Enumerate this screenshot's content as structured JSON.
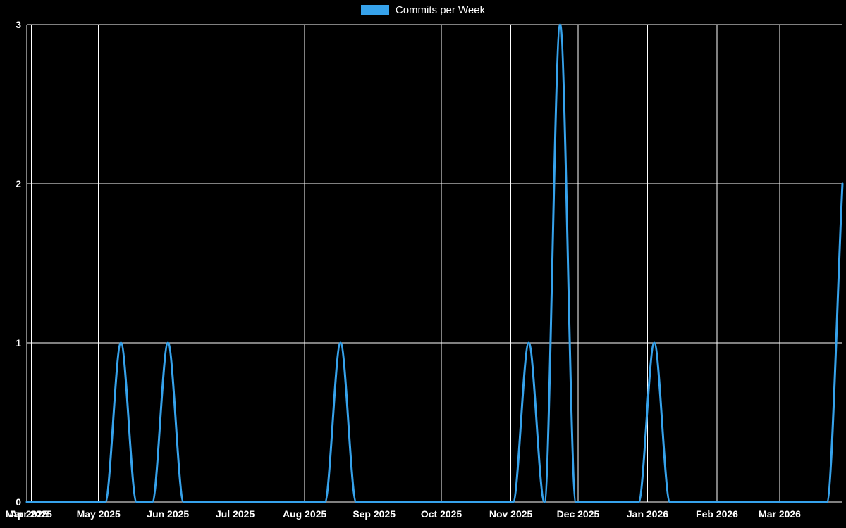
{
  "legend": {
    "label": "Commits per Week",
    "swatch_color": "#36a2eb"
  },
  "chart_data": {
    "type": "line",
    "title": "Commits per Week",
    "xlabel": "",
    "ylabel": "",
    "legend_position": "top",
    "grid": true,
    "background_color": "#000000",
    "grid_color": "#ffffff",
    "text_color": "#ffffff",
    "line_color": "#36a2eb",
    "ylim": [
      0,
      3
    ],
    "y_ticks": [
      0,
      1,
      2,
      3
    ],
    "x_range": [
      "2025-03-30",
      "2026-03-29"
    ],
    "x_ticks": [
      {
        "date": "2025-03-30",
        "label": "Mar 2025"
      },
      {
        "date": "2025-04-01",
        "label": "Apr 2025"
      },
      {
        "date": "2025-05-01",
        "label": "May 2025"
      },
      {
        "date": "2025-06-01",
        "label": "Jun 2025"
      },
      {
        "date": "2025-07-01",
        "label": "Jul 2025"
      },
      {
        "date": "2025-08-01",
        "label": "Aug 2025"
      },
      {
        "date": "2025-09-01",
        "label": "Sep 2025"
      },
      {
        "date": "2025-10-01",
        "label": "Oct 2025"
      },
      {
        "date": "2025-11-01",
        "label": "Nov 2025"
      },
      {
        "date": "2025-12-01",
        "label": "Dec 2025"
      },
      {
        "date": "2026-01-01",
        "label": "Jan 2026"
      },
      {
        "date": "2026-02-01",
        "label": "Feb 2026"
      },
      {
        "date": "2026-03-01",
        "label": "Mar 2026"
      }
    ],
    "series": [
      {
        "name": "Commits per Week",
        "x": [
          "2025-03-30",
          "2025-04-06",
          "2025-04-13",
          "2025-04-20",
          "2025-04-27",
          "2025-05-04",
          "2025-05-11",
          "2025-05-18",
          "2025-05-25",
          "2025-06-01",
          "2025-06-08",
          "2025-06-15",
          "2025-06-22",
          "2025-06-29",
          "2025-07-06",
          "2025-07-13",
          "2025-07-20",
          "2025-07-27",
          "2025-08-03",
          "2025-08-10",
          "2025-08-17",
          "2025-08-24",
          "2025-08-31",
          "2025-09-07",
          "2025-09-14",
          "2025-09-21",
          "2025-09-28",
          "2025-10-05",
          "2025-10-12",
          "2025-10-19",
          "2025-10-26",
          "2025-11-02",
          "2025-11-09",
          "2025-11-16",
          "2025-11-23",
          "2025-11-30",
          "2025-12-07",
          "2025-12-14",
          "2025-12-21",
          "2025-12-28",
          "2026-01-04",
          "2026-01-11",
          "2026-01-18",
          "2026-01-25",
          "2026-02-01",
          "2026-02-08",
          "2026-02-15",
          "2026-02-22",
          "2026-03-01",
          "2026-03-08",
          "2026-03-15",
          "2026-03-22",
          "2026-03-29"
        ],
        "values": [
          0,
          0,
          0,
          0,
          0,
          0,
          1,
          0,
          0,
          1,
          0,
          0,
          0,
          0,
          0,
          0,
          0,
          0,
          0,
          0,
          1,
          0,
          0,
          0,
          0,
          0,
          0,
          0,
          0,
          0,
          0,
          0,
          1,
          0,
          3,
          0,
          0,
          0,
          0,
          0,
          1,
          0,
          0,
          0,
          0,
          0,
          0,
          0,
          0,
          0,
          0,
          0,
          2
        ]
      }
    ]
  }
}
